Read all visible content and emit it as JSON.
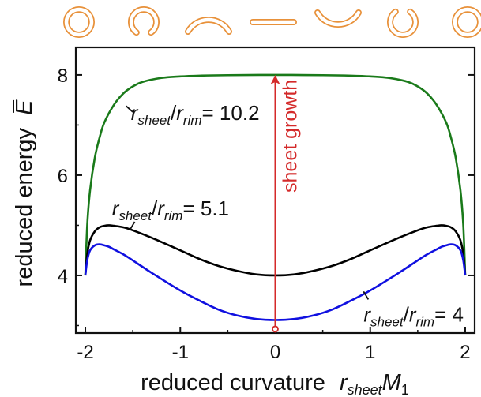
{
  "chart_data": {
    "type": "line",
    "title": "",
    "xlabel": {
      "main": "reduced curvature",
      "var": "r",
      "var_sub": "sheet",
      "var2": "M",
      "var2_sub": "1"
    },
    "ylabel": {
      "main": "reduced energy",
      "var": "E"
    },
    "xlim": [
      -2.1,
      2.1
    ],
    "ylim": [
      2.85,
      8.55
    ],
    "xticks": [
      -2,
      -1,
      0,
      1,
      2
    ],
    "xtick_labels": [
      "-2",
      "-1",
      "0",
      "1",
      "2"
    ],
    "yticks": [
      4,
      6,
      8
    ],
    "ytick_labels": [
      "4",
      "6",
      "8"
    ],
    "grid": false,
    "legend": "none",
    "series": [
      {
        "color": "#1a7a1a",
        "x": [
          -2.0,
          -1.98,
          -1.95,
          -1.9,
          -1.85,
          -1.8,
          -1.7,
          -1.6,
          -1.5,
          -1.4,
          -1.2,
          -1.0,
          -0.8,
          -0.5,
          0,
          0.5,
          0.8,
          1.0,
          1.2,
          1.4,
          1.5,
          1.6,
          1.7,
          1.8,
          1.85,
          1.9,
          1.95,
          1.98,
          2.0
        ],
        "y": [
          4.0,
          5.0,
          5.7,
          6.35,
          6.75,
          7.05,
          7.4,
          7.63,
          7.77,
          7.86,
          7.94,
          7.97,
          7.985,
          7.995,
          8.0,
          7.995,
          7.985,
          7.97,
          7.94,
          7.86,
          7.77,
          7.63,
          7.4,
          7.05,
          6.75,
          6.35,
          5.7,
          5.0,
          4.0
        ]
      },
      {
        "color": "#000000",
        "x": [
          -2.0,
          -1.98,
          -1.95,
          -1.9,
          -1.85,
          -1.8,
          -1.75,
          -1.7,
          -1.6,
          -1.5,
          -1.3,
          -1.0,
          -0.8,
          -0.6,
          -0.4,
          -0.2,
          0,
          0.2,
          0.4,
          0.6,
          0.8,
          1.0,
          1.3,
          1.5,
          1.6,
          1.7,
          1.75,
          1.8,
          1.85,
          1.9,
          1.95,
          1.98,
          2.0
        ],
        "y": [
          4.0,
          4.42,
          4.7,
          4.88,
          4.96,
          4.99,
          5.0,
          4.99,
          4.96,
          4.9,
          4.75,
          4.5,
          4.33,
          4.19,
          4.09,
          4.02,
          4.0,
          4.02,
          4.09,
          4.19,
          4.33,
          4.5,
          4.75,
          4.9,
          4.96,
          4.99,
          5.0,
          4.99,
          4.96,
          4.88,
          4.7,
          4.42,
          4.0
        ]
      },
      {
        "color": "#1010e0",
        "x": [
          -2.0,
          -1.98,
          -1.95,
          -1.9,
          -1.85,
          -1.8,
          -1.75,
          -1.7,
          -1.6,
          -1.5,
          -1.3,
          -1.0,
          -0.8,
          -0.6,
          -0.4,
          -0.2,
          0,
          0.2,
          0.4,
          0.6,
          0.8,
          1.0,
          1.3,
          1.5,
          1.6,
          1.7,
          1.75,
          1.8,
          1.85,
          1.9,
          1.95,
          1.98,
          2.0
        ],
        "y": [
          4.0,
          4.3,
          4.5,
          4.6,
          4.62,
          4.6,
          4.57,
          4.52,
          4.42,
          4.3,
          4.05,
          3.7,
          3.5,
          3.32,
          3.2,
          3.13,
          3.11,
          3.13,
          3.2,
          3.32,
          3.5,
          3.7,
          4.05,
          4.3,
          4.42,
          4.52,
          4.57,
          4.6,
          4.62,
          4.6,
          4.5,
          4.3,
          4.0
        ]
      }
    ],
    "annotations": [
      {
        "kind": "curve-label",
        "var": "r",
        "sub1": "sheet",
        "sep": "/",
        "var2": "r",
        "sub2": "rim",
        "value": "= 10.2",
        "anchor": [
          -1.52,
          7.1
        ],
        "pointer_from": [
          -1.5,
          7.26
        ],
        "pointer_to": [
          -1.57,
          7.38
        ]
      },
      {
        "kind": "curve-label",
        "var": "r",
        "sub1": "sheet",
        "sep": "/",
        "var2": "r",
        "sub2": "rim",
        "value": "= 5.1",
        "anchor": [
          -1.72,
          5.2
        ],
        "pointer_from": [
          -1.48,
          5.07
        ],
        "pointer_to": [
          -1.53,
          4.91
        ]
      },
      {
        "kind": "curve-label",
        "var": "r",
        "sub1": "sheet",
        "sep": "/",
        "var2": "r",
        "sub2": "rim",
        "value": "= 4",
        "anchor": [
          0.93,
          3.08
        ],
        "pointer_from": [
          0.98,
          3.52
        ],
        "pointer_to": [
          0.93,
          3.68
        ]
      }
    ],
    "arrow": {
      "label": "sheet growth",
      "color": "#d42a2a",
      "x": 0,
      "y_start": 2.93,
      "y_end": 8.0
    },
    "top_icons": [
      "closed-ring-icon",
      "open-ring-icon",
      "shallow-arc-up-icon",
      "flat-sheet-icon",
      "shallow-arc-down-icon",
      "open-ring-up-icon",
      "closed-ring-icon"
    ],
    "icon_color": "#e8913a"
  }
}
